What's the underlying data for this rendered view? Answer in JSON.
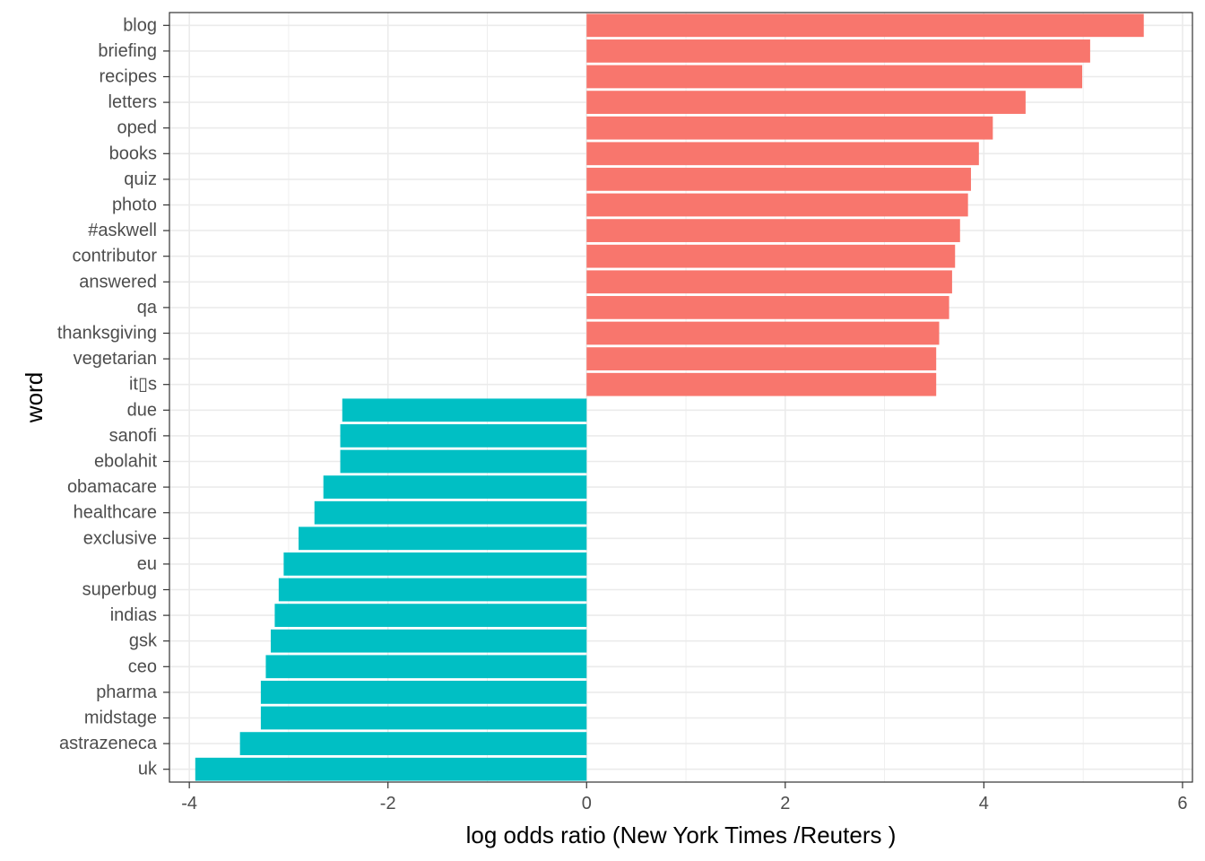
{
  "chart_data": {
    "type": "bar",
    "orientation": "horizontal",
    "xlabel": "log odds ratio (New York Times /Reuters )",
    "ylabel": "word",
    "xlim": [
      -4.2,
      6.1
    ],
    "x_ticks": [
      -4,
      -2,
      0,
      2,
      4,
      6
    ],
    "grid": true,
    "colors": {
      "positive": "#F8766D",
      "negative": "#00BFC4"
    },
    "categories": [
      "blog",
      "briefing",
      "recipes",
      "letters",
      "oped",
      "books",
      "quiz",
      "photo",
      "#askwell",
      "contributor",
      "answered",
      "qa",
      "thanksgiving",
      "vegetarian",
      "it▯s",
      "due",
      "sanofi",
      "ebolahit",
      "obamacare",
      "healthcare",
      "exclusive",
      "eu",
      "superbug",
      "indias",
      "gsk",
      "ceo",
      "pharma",
      "midstage",
      "astrazeneca",
      "uk"
    ],
    "values": [
      5.61,
      5.07,
      4.99,
      4.42,
      4.09,
      3.95,
      3.87,
      3.84,
      3.76,
      3.71,
      3.68,
      3.65,
      3.55,
      3.52,
      3.52,
      -2.46,
      -2.48,
      -2.48,
      -2.65,
      -2.74,
      -2.9,
      -3.05,
      -3.1,
      -3.14,
      -3.18,
      -3.23,
      -3.28,
      -3.28,
      -3.49,
      -3.94
    ]
  }
}
